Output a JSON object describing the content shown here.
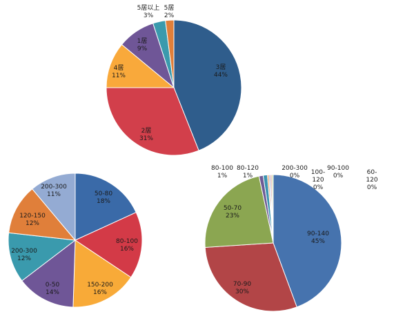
{
  "chart_data": [
    {
      "type": "pie",
      "title": "",
      "slices": [
        {
          "name": "3居",
          "value": 44,
          "label": "44%",
          "color": "#2f5d8c"
        },
        {
          "name": "2居",
          "value": 31,
          "label": "31%",
          "color": "#d23f4b"
        },
        {
          "name": "4居",
          "value": 11,
          "label": "11%",
          "color": "#f9a93b"
        },
        {
          "name": "1居",
          "value": 9,
          "label": "9%",
          "color": "#6f5697"
        },
        {
          "name": "5居以上",
          "value": 3,
          "label": "3%",
          "color": "#3a9aad"
        },
        {
          "name": "5居",
          "value": 2,
          "label": "2%",
          "color": "#e07f3a"
        }
      ]
    },
    {
      "type": "pie",
      "title": "",
      "slices": [
        {
          "name": "50-80",
          "value": 18,
          "label": "18%",
          "color": "#3a6aa8"
        },
        {
          "name": "80-100",
          "value": 16,
          "label": "16%",
          "color": "#d33a47"
        },
        {
          "name": "150-200",
          "value": 16,
          "label": "16%",
          "color": "#f8aa38"
        },
        {
          "name": "0-50",
          "value": 14,
          "label": "14%",
          "color": "#6f5697"
        },
        {
          "name": "200-300",
          "value": 12,
          "label": "12%",
          "color": "#3a9aad"
        },
        {
          "name": "120-150",
          "value": 12,
          "label": "12%",
          "color": "#e07f3a"
        },
        {
          "name": "200-300",
          "value": 11,
          "label": "11%",
          "color": "#94abd3"
        }
      ]
    },
    {
      "type": "pie",
      "title": "",
      "slices": [
        {
          "name": "90-140",
          "value": 45,
          "label": "45%",
          "color": "#4673ae"
        },
        {
          "name": "70-90",
          "value": 30,
          "label": "30%",
          "color": "#b24547"
        },
        {
          "name": "50-70",
          "value": 23,
          "label": "23%",
          "color": "#8ba651"
        },
        {
          "name": "80-100",
          "value": 1,
          "label": "1%",
          "color": "#6e5b95"
        },
        {
          "name": "80-120",
          "value": 1,
          "label": "1%",
          "color": "#3b93b0"
        },
        {
          "name": "200-300",
          "value": 0,
          "label": "0%",
          "color": "#e8883a"
        },
        {
          "name": "100-120",
          "value": 0,
          "label": "0%",
          "color": "#9bb3d6"
        },
        {
          "name": "90-100",
          "value": 0,
          "label": "0%",
          "color": "#d89a98"
        },
        {
          "name": "60-120",
          "value": 0,
          "label": "0%",
          "color": "#c5d69e"
        }
      ]
    }
  ]
}
